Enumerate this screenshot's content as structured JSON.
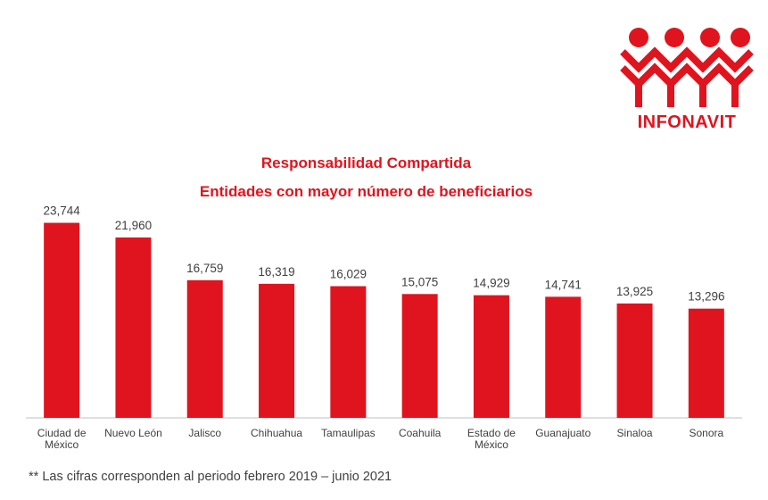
{
  "brand": {
    "name": "INFONAVIT",
    "color": "#e0141e"
  },
  "chart_data": {
    "type": "bar",
    "title": "Responsabilidad Compartida",
    "subtitle": "Entidades con mayor número de beneficiarios",
    "categories": [
      [
        "Ciudad de",
        "México"
      ],
      [
        "Nuevo León"
      ],
      [
        "Jalisco"
      ],
      [
        "Chihuahua"
      ],
      [
        "Tamaulipas"
      ],
      [
        "Coahuila"
      ],
      [
        "Estado de",
        "México"
      ],
      [
        "Guanajuato"
      ],
      [
        "Sinaloa"
      ],
      [
        "Sonora"
      ]
    ],
    "values": [
      23744,
      21960,
      16759,
      16319,
      16029,
      15075,
      14929,
      14741,
      13925,
      13296
    ],
    "value_labels": [
      "23,744",
      "21,960",
      "16,759",
      "16,319",
      "16,029",
      "15,075",
      "14,929",
      "14,741",
      "13,925",
      "13,296"
    ],
    "ylim": [
      0,
      25000
    ],
    "xlabel": "",
    "ylabel": "",
    "bar_color": "#e0141e",
    "grid": false
  },
  "footnote": "** Las cifras corresponden al periodo febrero 2019 – junio 2021"
}
